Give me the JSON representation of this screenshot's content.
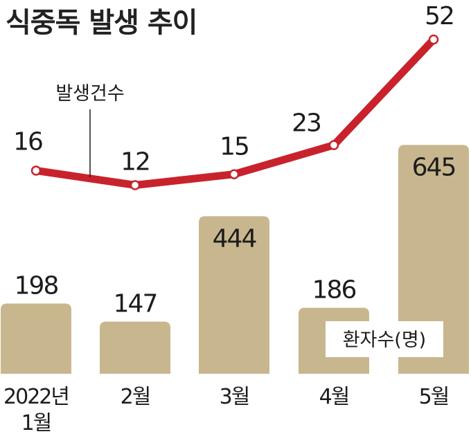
{
  "chart_data": {
    "type": "bar+line",
    "title": "식중독 발생 추이",
    "categories": [
      [
        "2022년",
        "1월"
      ],
      [
        "2월"
      ],
      [
        "3월"
      ],
      [
        "4월"
      ],
      [
        "5월"
      ]
    ],
    "series": [
      {
        "name": "환자수(명)",
        "type": "bar",
        "values": [
          198,
          147,
          444,
          186,
          645
        ]
      },
      {
        "name": "발생건수",
        "type": "line",
        "values": [
          16,
          12,
          15,
          23,
          52
        ]
      }
    ],
    "colors": {
      "bar": "#c8b78e",
      "line": "#c8232c",
      "text": "#1c1c1c"
    }
  }
}
